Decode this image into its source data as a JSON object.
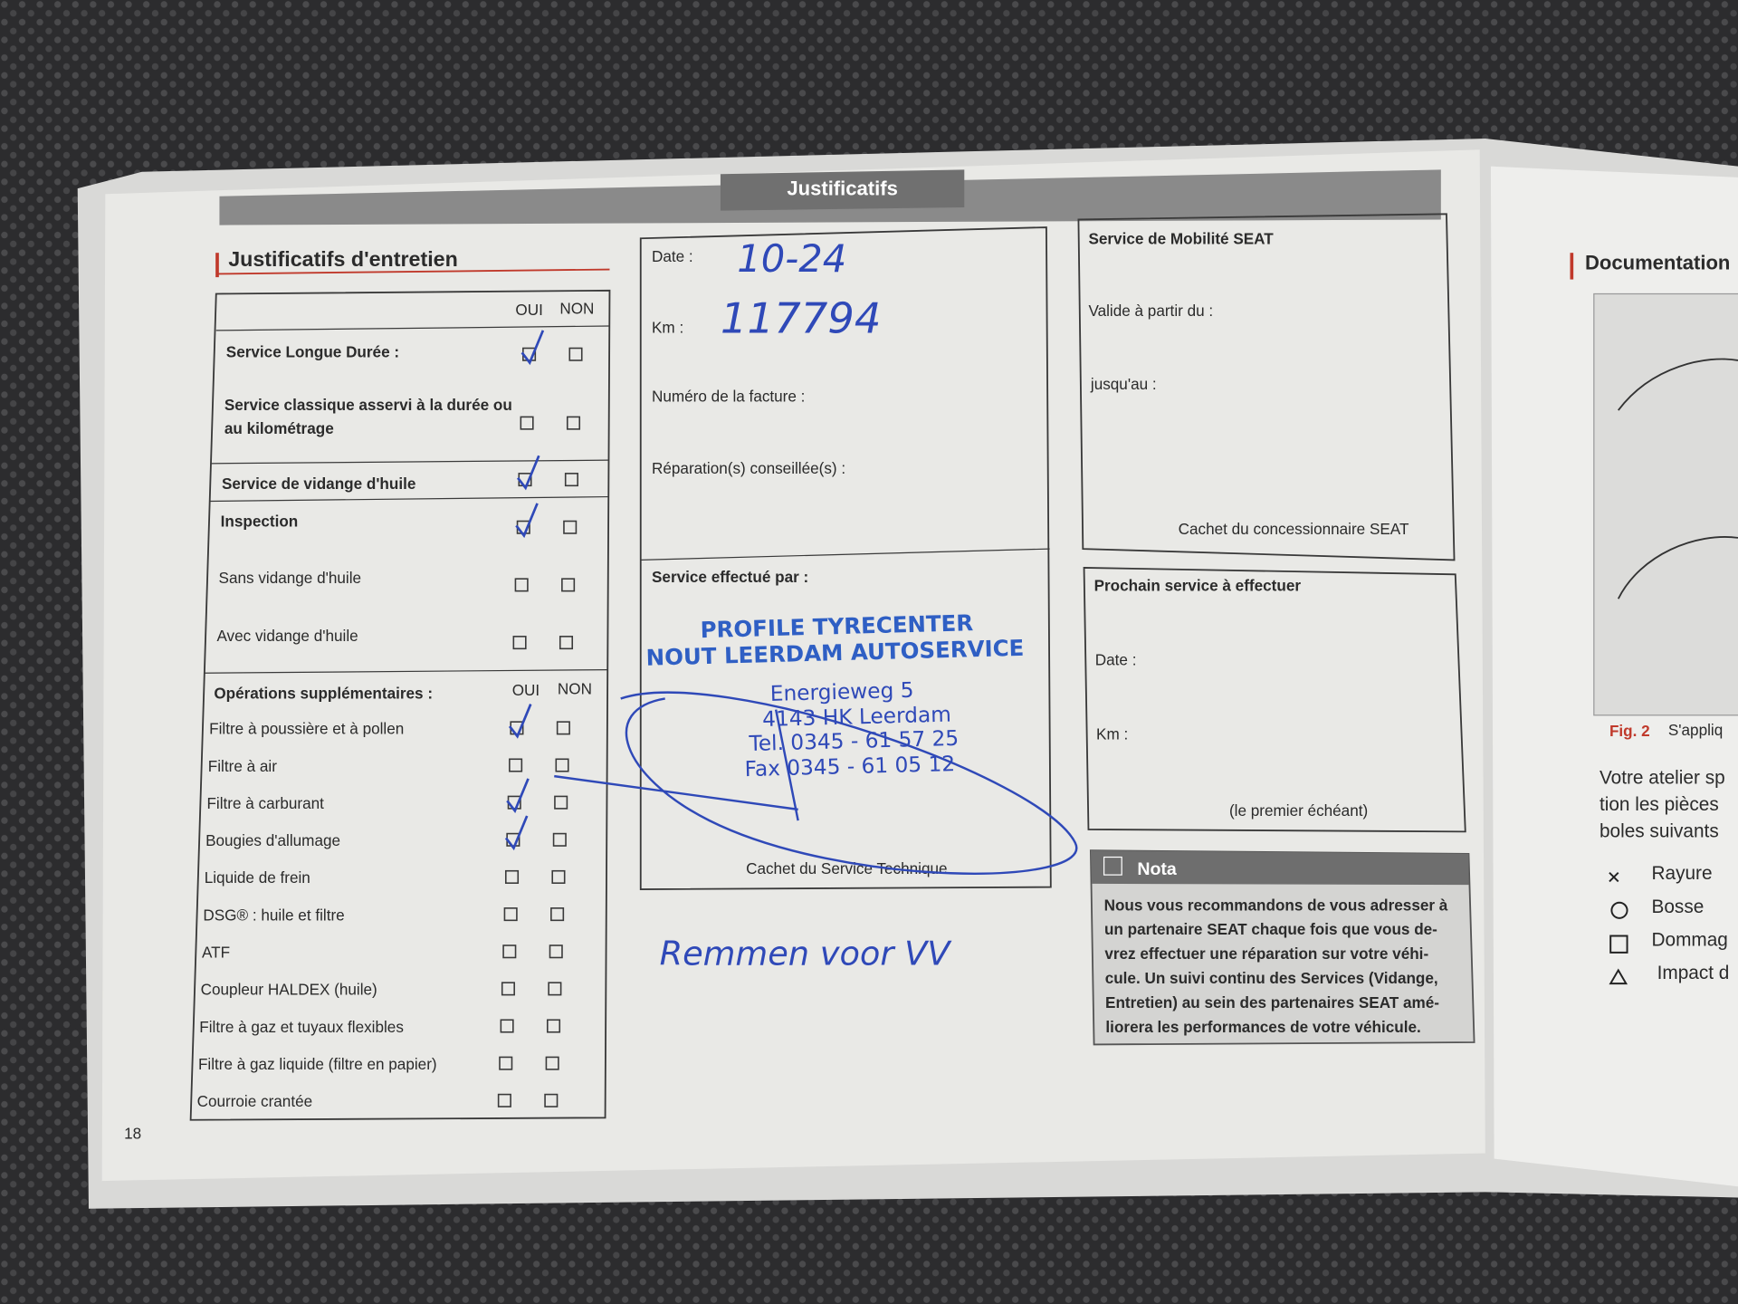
{
  "page_number": "18",
  "header": {
    "title": "Justificatifs"
  },
  "maintenance": {
    "title": "Justificatifs d'entretien",
    "col_oui": "OUI",
    "col_non": "NON",
    "items": [
      {
        "lines": [
          "Service Longue Durée :"
        ],
        "checked": true,
        "bold": true
      },
      {
        "lines": [
          "Service classique asservi à la durée ou",
          "au kilométrage"
        ],
        "checked": false,
        "bold": true
      },
      {
        "lines": [
          "Service de vidange d'huile"
        ],
        "checked": true,
        "bold": true
      },
      {
        "lines": [
          "Inspection"
        ],
        "checked": true,
        "bold": true
      },
      {
        "lines": [
          "Sans vidange d'huile"
        ],
        "checked": false,
        "bold": false
      },
      {
        "lines": [
          "Avec vidange d'huile"
        ],
        "checked": false,
        "bold": false
      }
    ],
    "extra_title": "Opérations supplémentaires :",
    "extra_oui": "OUI",
    "extra_non": "NON",
    "extra_items": [
      {
        "label": "Filtre à poussière et à pollen",
        "checked": true
      },
      {
        "label": "Filtre à air",
        "checked": false
      },
      {
        "label": "Filtre à carburant",
        "checked": true
      },
      {
        "label": "Bougies d'allumage",
        "checked": true
      },
      {
        "label": "Liquide de frein",
        "checked": false
      },
      {
        "label": "DSG® : huile et filtre",
        "checked": false
      },
      {
        "label": "ATF",
        "checked": false
      },
      {
        "label": "Coupleur HALDEX (huile)",
        "checked": false
      },
      {
        "label": "Filtre à gaz et tuyaux flexibles",
        "checked": false
      },
      {
        "label": "Filtre à gaz liquide (filtre en papier)",
        "checked": false
      },
      {
        "label": "Courroie crantée",
        "checked": false
      }
    ]
  },
  "service": {
    "date_label": "Date :",
    "date_value": "10-24",
    "km_label": "Km :",
    "km_value": "117794",
    "invoice_label": "Numéro de la facture :",
    "repairs_label": "Réparation(s) conseillée(s) :",
    "done_by_label": "Service effectué par :",
    "stamp": [
      "PROFILE TYRECENTER",
      "NOUT LEERDAM AUTOSERVICE",
      "Energieweg 5",
      "4143 HK Leerdam",
      "Tel. 0345 - 61 57 25",
      "Fax 0345 - 61 05 12"
    ],
    "stamp_caption": "Cachet du Service Technique",
    "handwritten_note": "Remmen voor VV"
  },
  "mobility": {
    "title": "Service de Mobilité SEAT",
    "valid_from": "Valide à partir du :",
    "until": "jusqu'au :",
    "caption": "Cachet du concessionnaire SEAT"
  },
  "next_service": {
    "title": "Prochain service à effectuer",
    "date_label": "Date :",
    "km_label": "Km :",
    "note": "(le premier échéant)"
  },
  "nota": {
    "title": "Nota",
    "lines": [
      "Nous vous recommandons de vous adresser à",
      "un partenaire SEAT chaque fois que vous de-",
      "vrez effectuer une réparation sur votre véhi-",
      "cule. Un suivi continu des Services (Vidange,",
      "Entretien) au sein des partenaires SEAT amé-",
      "liorera les performances de votre véhicule."
    ]
  },
  "next_page": {
    "title": "Documentation",
    "fig_label": "Fig. 2",
    "fig_caption": "S'appliq",
    "text_lines": [
      "Votre atelier sp",
      "tion les pièces",
      "boles suivants"
    ],
    "legend": [
      "Rayure",
      "Bosse",
      "Dommag",
      "Impact d"
    ]
  }
}
